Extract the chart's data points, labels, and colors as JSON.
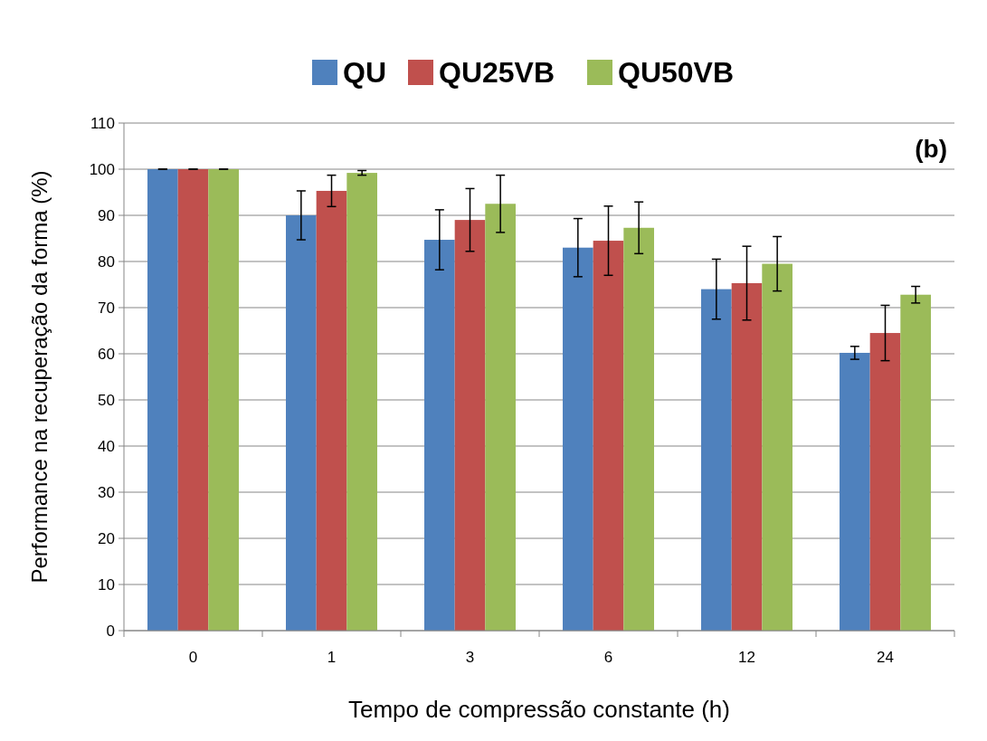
{
  "chart_data": {
    "type": "bar",
    "xlabel": "Tempo de compressão constante (h)",
    "ylabel": "Performance na recuperação da forma (%)",
    "categories": [
      "0",
      "1",
      "3",
      "6",
      "12",
      "24"
    ],
    "series": [
      {
        "name": "QU",
        "color": "#4f81bd",
        "values": [
          100,
          90,
          84.7,
          83,
          74,
          60.2
        ],
        "errors": [
          0,
          5.3,
          6.5,
          6.3,
          6.5,
          1.4
        ]
      },
      {
        "name": "QU25VB",
        "color": "#c0504d",
        "values": [
          100,
          95.3,
          89,
          84.5,
          75.3,
          64.5
        ],
        "errors": [
          0,
          3.4,
          6.8,
          7.5,
          8,
          6
        ]
      },
      {
        "name": "QU50VB",
        "color": "#9bbb59",
        "values": [
          100,
          99.2,
          92.5,
          87.3,
          79.5,
          72.8
        ],
        "errors": [
          0,
          0.5,
          6.2,
          5.6,
          5.9,
          1.8
        ]
      }
    ],
    "ylim": [
      0,
      110
    ],
    "yticks": [
      0,
      10,
      20,
      30,
      40,
      50,
      60,
      70,
      80,
      90,
      100,
      110
    ],
    "grid": "y",
    "legend": "top",
    "annotations": [
      "(b)"
    ]
  }
}
